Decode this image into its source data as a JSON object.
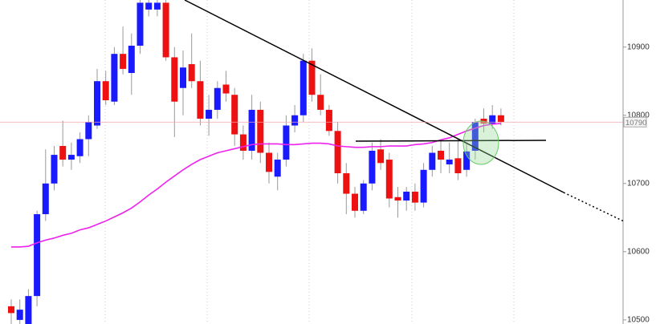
{
  "chart_data": {
    "type": "candlestick",
    "open": [
      10520,
      10500,
      10494,
      10535,
      10655,
      10700,
      10755,
      10735,
      10740,
      10765,
      10785,
      10850,
      10820,
      10890,
      10862,
      10902,
      10955,
      10955,
      10965,
      10885,
      10840,
      10875,
      10850,
      10795,
      10808,
      10845,
      10830,
      10772,
      10748,
      10808,
      10745,
      10710,
      10735,
      10785,
      10800,
      10880,
      10830,
      10808,
      10777,
      10715,
      10685,
      10660,
      10700,
      10750,
      10735,
      10680,
      10675,
      10688,
      10672,
      10720,
      10748,
      10728,
      10737,
      10720,
      10748,
      10795,
      10788,
      10800
    ],
    "high": [
      10530,
      10530,
      10545,
      10660,
      10750,
      10755,
      10792,
      10760,
      10775,
      10800,
      10868,
      10865,
      10900,
      10930,
      10920,
      10969,
      10969,
      10969,
      10969,
      10900,
      10895,
      10920,
      10880,
      10830,
      10850,
      10865,
      10840,
      10785,
      10830,
      10820,
      10760,
      10745,
      10800,
      10815,
      10890,
      10898,
      10860,
      10815,
      10790,
      10730,
      10695,
      10705,
      10760,
      10765,
      10745,
      10695,
      10695,
      10700,
      10730,
      10755,
      10765,
      10760,
      10765,
      10758,
      10795,
      10810,
      10815,
      10810
    ],
    "low": [
      10494,
      10494,
      10494,
      10520,
      10645,
      10690,
      10725,
      10720,
      10730,
      10740,
      10780,
      10815,
      10815,
      10860,
      10830,
      10890,
      10945,
      10945,
      10880,
      10768,
      10800,
      10840,
      10785,
      10770,
      10795,
      10820,
      10755,
      10735,
      10735,
      10730,
      10700,
      10690,
      10725,
      10775,
      10790,
      10820,
      10800,
      10770,
      10700,
      10655,
      10650,
      10655,
      10690,
      10720,
      10665,
      10650,
      10660,
      10660,
      10665,
      10710,
      10715,
      10715,
      10705,
      10710,
      10735,
      10775,
      10780,
      10785
    ],
    "close": [
      10510,
      10515,
      10535,
      10655,
      10700,
      10742,
      10735,
      10742,
      10765,
      10790,
      10850,
      10822,
      10890,
      10868,
      10902,
      10965,
      10965,
      10965,
      10885,
      10820,
      10870,
      10850,
      10795,
      10808,
      10840,
      10832,
      10772,
      10748,
      10808,
      10745,
      10717,
      10735,
      10785,
      10800,
      10880,
      10830,
      10808,
      10777,
      10715,
      10685,
      10660,
      10700,
      10748,
      10730,
      10678,
      10675,
      10688,
      10672,
      10720,
      10745,
      10735,
      10735,
      10715,
      10747,
      10790,
      10788,
      10800,
      10790
    ],
    "up_color": "#1a1aff",
    "down_color": "#ee1111",
    "moving_average": {
      "color": "#ee22ee",
      "values": [
        10607,
        10607,
        10608,
        10613,
        10617,
        10620,
        10624,
        10627,
        10632,
        10635,
        10640,
        10645,
        10651,
        10657,
        10664,
        10673,
        10683,
        10692,
        10702,
        10711,
        10720,
        10728,
        10735,
        10740,
        10745,
        10748,
        10751,
        10754,
        10757,
        10758,
        10758,
        10758,
        10757,
        10757,
        10758,
        10759,
        10759,
        10758,
        10755,
        10754,
        10753,
        10753,
        10754,
        10754,
        10755,
        10755,
        10755,
        10757,
        10758,
        10760,
        10764,
        10767,
        10772,
        10777,
        10781,
        10785,
        10787,
        10788
      ]
    },
    "last_price": 10790,
    "ylim": [
      10494,
      10969
    ],
    "yticks": [
      10500,
      10600,
      10700,
      10800,
      10900
    ]
  }
}
